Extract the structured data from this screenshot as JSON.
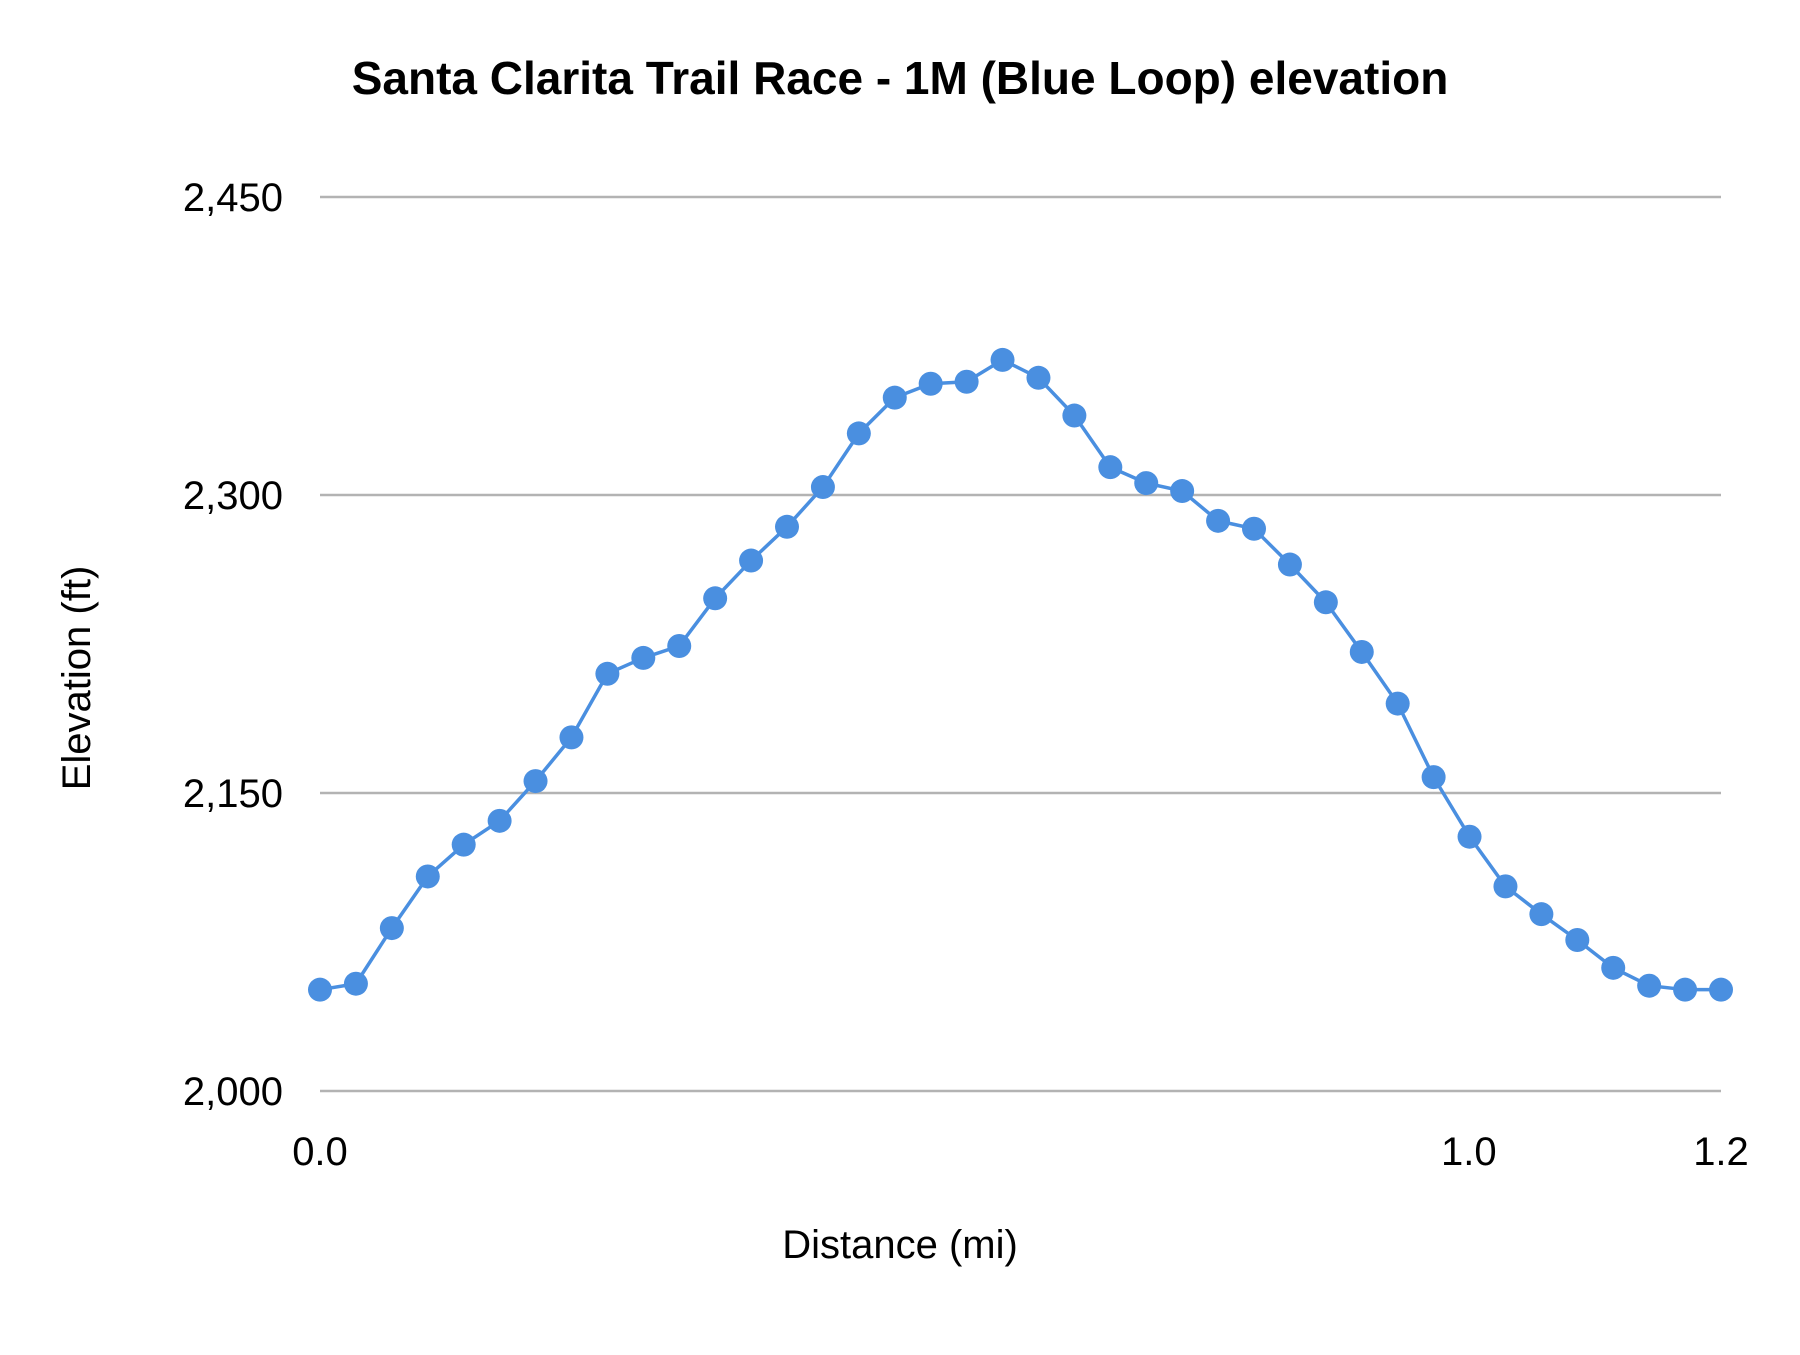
{
  "chart_data": {
    "type": "line",
    "title": "Santa Clarita Trail Race - 1M (Blue Loop) elevation",
    "xlabel": "Distance (mi)",
    "ylabel": "Elevation (ft)",
    "xlim": [
      0,
      1.2
    ],
    "ylim": [
      2000,
      2450
    ],
    "x_ticks": [
      {
        "value": 0,
        "label": "0.0"
      },
      {
        "value": 0.984,
        "label": "1.0"
      },
      {
        "value": 1.2,
        "label": "1.2"
      }
    ],
    "y_ticks": [
      {
        "value": 2000,
        "label": "2,000"
      },
      {
        "value": 2150,
        "label": "2,150"
      },
      {
        "value": 2300,
        "label": "2,300"
      },
      {
        "value": 2450,
        "label": "2,450"
      }
    ],
    "grid": "horizontal",
    "legend": "none",
    "color": "#4a8fe0",
    "markers": true,
    "series": [
      {
        "values": [
          2051,
          2054,
          2082,
          2108,
          2124,
          2136,
          2156,
          2178,
          2210,
          2218,
          2224,
          2248,
          2267,
          2284,
          2304,
          2331,
          2349,
          2356,
          2357,
          2368,
          2359,
          2340,
          2314,
          2306,
          2302,
          2287,
          2283,
          2265,
          2246,
          2221,
          2195,
          2158,
          2128,
          2103,
          2089,
          2076,
          2062,
          2053,
          2051,
          2051
        ]
      }
    ]
  }
}
